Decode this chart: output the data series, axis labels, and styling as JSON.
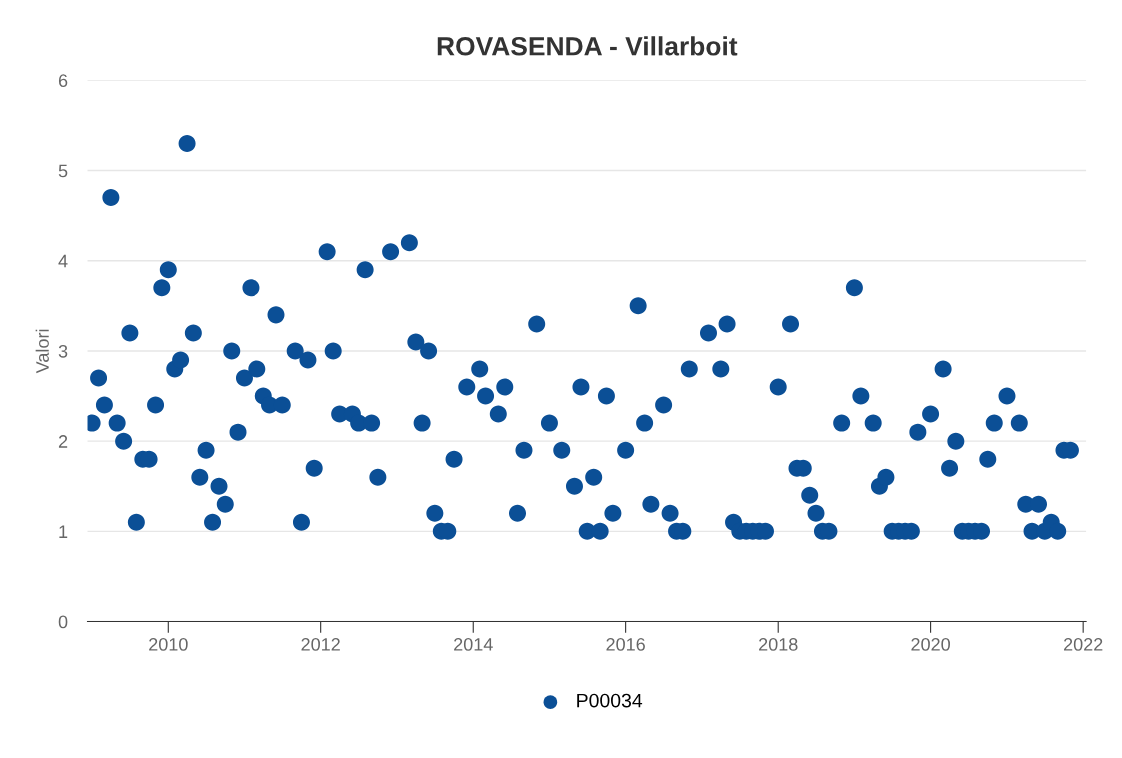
{
  "chart_data": {
    "type": "scatter",
    "title": "ROVASENDA - Villarboit",
    "ylabel": "Valori",
    "xlim": [
      "2008-12-10",
      "2022-01-15"
    ],
    "xticks": [
      "2010",
      "2012",
      "2014",
      "2016",
      "2018",
      "2020",
      "2022"
    ],
    "ylim": [
      0,
      6
    ],
    "yticks": [
      0,
      1,
      2,
      3,
      4,
      5,
      6
    ],
    "grid": "y",
    "legend": "bottom",
    "marker": "circle",
    "series": [
      {
        "name": "P00034",
        "color": "#0b4f96",
        "x": [
          "2009-01",
          "2009-02",
          "2009-03",
          "2009-04",
          "2009-05",
          "2009-06",
          "2009-07",
          "2009-08",
          "2009-09",
          "2009-10",
          "2009-11",
          "2009-12",
          "2010-01",
          "2010-02",
          "2010-03",
          "2010-04",
          "2010-05",
          "2010-06",
          "2010-07",
          "2010-08",
          "2010-09",
          "2010-10",
          "2010-11",
          "2010-12",
          "2011-01",
          "2011-02",
          "2011-03",
          "2011-04",
          "2011-05",
          "2011-06",
          "2011-07",
          "2011-09",
          "2011-10",
          "2011-11",
          "2011-12",
          "2012-02",
          "2012-03",
          "2012-04",
          "2012-06",
          "2012-07",
          "2012-08",
          "2012-09",
          "2012-10",
          "2012-12",
          "2013-03",
          "2013-04",
          "2013-05",
          "2013-06",
          "2013-07",
          "2013-08",
          "2013-09",
          "2013-10",
          "2013-12",
          "2014-02",
          "2014-03",
          "2014-05",
          "2014-06",
          "2014-08",
          "2014-09",
          "2014-11",
          "2015-01",
          "2015-03",
          "2015-05",
          "2015-06",
          "2015-07",
          "2015-08",
          "2015-09",
          "2015-10",
          "2015-11",
          "2016-01",
          "2016-03",
          "2016-04",
          "2016-05",
          "2016-07",
          "2016-08",
          "2016-09",
          "2016-10",
          "2016-11",
          "2017-02",
          "2017-04",
          "2017-05",
          "2017-06",
          "2017-07",
          "2017-08",
          "2017-09",
          "2017-10",
          "2017-11",
          "2018-01",
          "2018-03",
          "2018-04",
          "2018-05",
          "2018-06",
          "2018-07",
          "2018-08",
          "2018-09",
          "2018-11",
          "2019-01",
          "2019-02",
          "2019-04",
          "2019-05",
          "2019-06",
          "2019-07",
          "2019-08",
          "2019-09",
          "2019-10",
          "2019-11",
          "2020-01",
          "2020-03",
          "2020-04",
          "2020-05",
          "2020-06",
          "2020-07",
          "2020-08",
          "2020-09",
          "2020-10",
          "2020-11",
          "2021-01",
          "2021-03",
          "2021-04",
          "2021-05",
          "2021-06",
          "2021-07",
          "2021-08",
          "2021-09",
          "2021-10",
          "2021-11"
        ],
        "values": [
          2.2,
          2.7,
          2.4,
          4.7,
          2.2,
          2.0,
          3.2,
          1.1,
          1.8,
          1.8,
          2.4,
          3.7,
          3.9,
          2.8,
          2.9,
          5.3,
          3.2,
          1.6,
          1.9,
          1.1,
          1.5,
          1.3,
          3.0,
          2.1,
          2.7,
          3.7,
          2.8,
          2.5,
          2.4,
          3.4,
          2.4,
          3.0,
          1.1,
          2.9,
          1.7,
          4.1,
          3.0,
          2.3,
          2.3,
          2.2,
          3.9,
          2.2,
          1.6,
          4.1,
          4.2,
          3.1,
          2.2,
          3.0,
          1.2,
          1.0,
          1.0,
          1.8,
          2.6,
          2.8,
          2.5,
          2.3,
          2.6,
          1.2,
          1.9,
          3.3,
          2.2,
          1.9,
          1.5,
          2.6,
          1.0,
          1.6,
          1.0,
          2.5,
          1.2,
          1.9,
          3.5,
          2.2,
          1.3,
          2.4,
          1.2,
          1.0,
          1.0,
          2.8,
          3.2,
          2.8,
          3.3,
          1.1,
          1.0,
          1.0,
          1.0,
          1.0,
          1.0,
          2.6,
          3.3,
          1.7,
          1.7,
          1.4,
          1.2,
          1.0,
          1.0,
          2.2,
          3.7,
          2.5,
          2.2,
          1.5,
          1.6,
          1.0,
          1.0,
          1.0,
          1.0,
          2.1,
          2.3,
          2.8,
          1.7,
          2.0,
          1.0,
          1.0,
          1.0,
          1.0,
          1.8,
          2.2,
          2.5,
          2.2,
          1.3,
          1.0,
          1.3,
          1.0,
          1.1,
          1.0,
          1.9,
          1.9
        ]
      }
    ]
  }
}
